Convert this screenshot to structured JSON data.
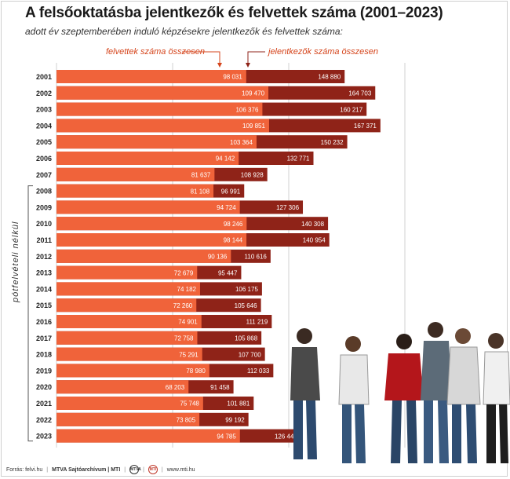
{
  "header": {
    "title": "A felsőoktatásba jelentkezők és felvettek száma (2001–2023)",
    "subtitle": "adott év szeptemberében induló képzésekre jelentkezők és felvettek száma:"
  },
  "sidenote": "pótfelvételi nélkül",
  "footer": {
    "source": "Forrás: felvi.hu",
    "credit": "MTVA Sajtóarchívum | MTI",
    "logo1": "MTVA",
    "logo2": "MTI",
    "url": "www.mti.hu"
  },
  "colors": {
    "admitted": "#f0633a",
    "applicants": "#8f2318",
    "gridline": "#d0d0d0"
  },
  "chart_data": {
    "type": "bar",
    "orientation": "horizontal",
    "layout": "overlaid",
    "title": "A felsőoktatásba jelentkezők és felvettek száma (2001–2023)",
    "categories": [
      "2001",
      "2002",
      "2003",
      "2004",
      "2005",
      "2006",
      "2007",
      "2008",
      "2009",
      "2010",
      "2011",
      "2012",
      "2013",
      "2014",
      "2015",
      "2016",
      "2017",
      "2018",
      "2019",
      "2020",
      "2021",
      "2022",
      "2023"
    ],
    "series": [
      {
        "name": "felvettek száma összesen",
        "values": [
          98031,
          109470,
          106376,
          109851,
          103364,
          94142,
          81637,
          81108,
          94724,
          98246,
          98144,
          90136,
          72679,
          74182,
          72260,
          74901,
          72758,
          75291,
          78980,
          68203,
          75748,
          73805,
          94785
        ],
        "labels": [
          "98 031",
          "109 470",
          "106 376",
          "109 851",
          "103 364",
          "94 142",
          "81 637",
          "81 108",
          "94 724",
          "98 246",
          "98 144",
          "90 136",
          "72 679",
          "74 182",
          "72 260",
          "74 901",
          "72 758",
          "75 291",
          "78 980",
          "68 203",
          "75 748",
          "73 805",
          "94 785"
        ]
      },
      {
        "name": "jelentkezők száma összesen",
        "values": [
          148880,
          164703,
          160217,
          167371,
          150232,
          132771,
          108928,
          96991,
          127306,
          140308,
          140954,
          110616,
          95447,
          106175,
          105646,
          111219,
          105868,
          107700,
          112033,
          91458,
          101881,
          99192,
          126449
        ],
        "labels": [
          "148 880",
          "164 703",
          "160 217",
          "167 371",
          "150 232",
          "132 771",
          "108 928",
          "96 991",
          "127 306",
          "140 308",
          "140 954",
          "110 616",
          "95 447",
          "106 175",
          "105 646",
          "111 219",
          "105 868",
          "107 700",
          "112 033",
          "91 458",
          "101 881",
          "99 192",
          "126 449"
        ]
      }
    ],
    "xlim": [
      0,
      180000
    ],
    "grid": true,
    "bracketed_categories": [
      "2008",
      "2023"
    ],
    "legend": "top"
  }
}
